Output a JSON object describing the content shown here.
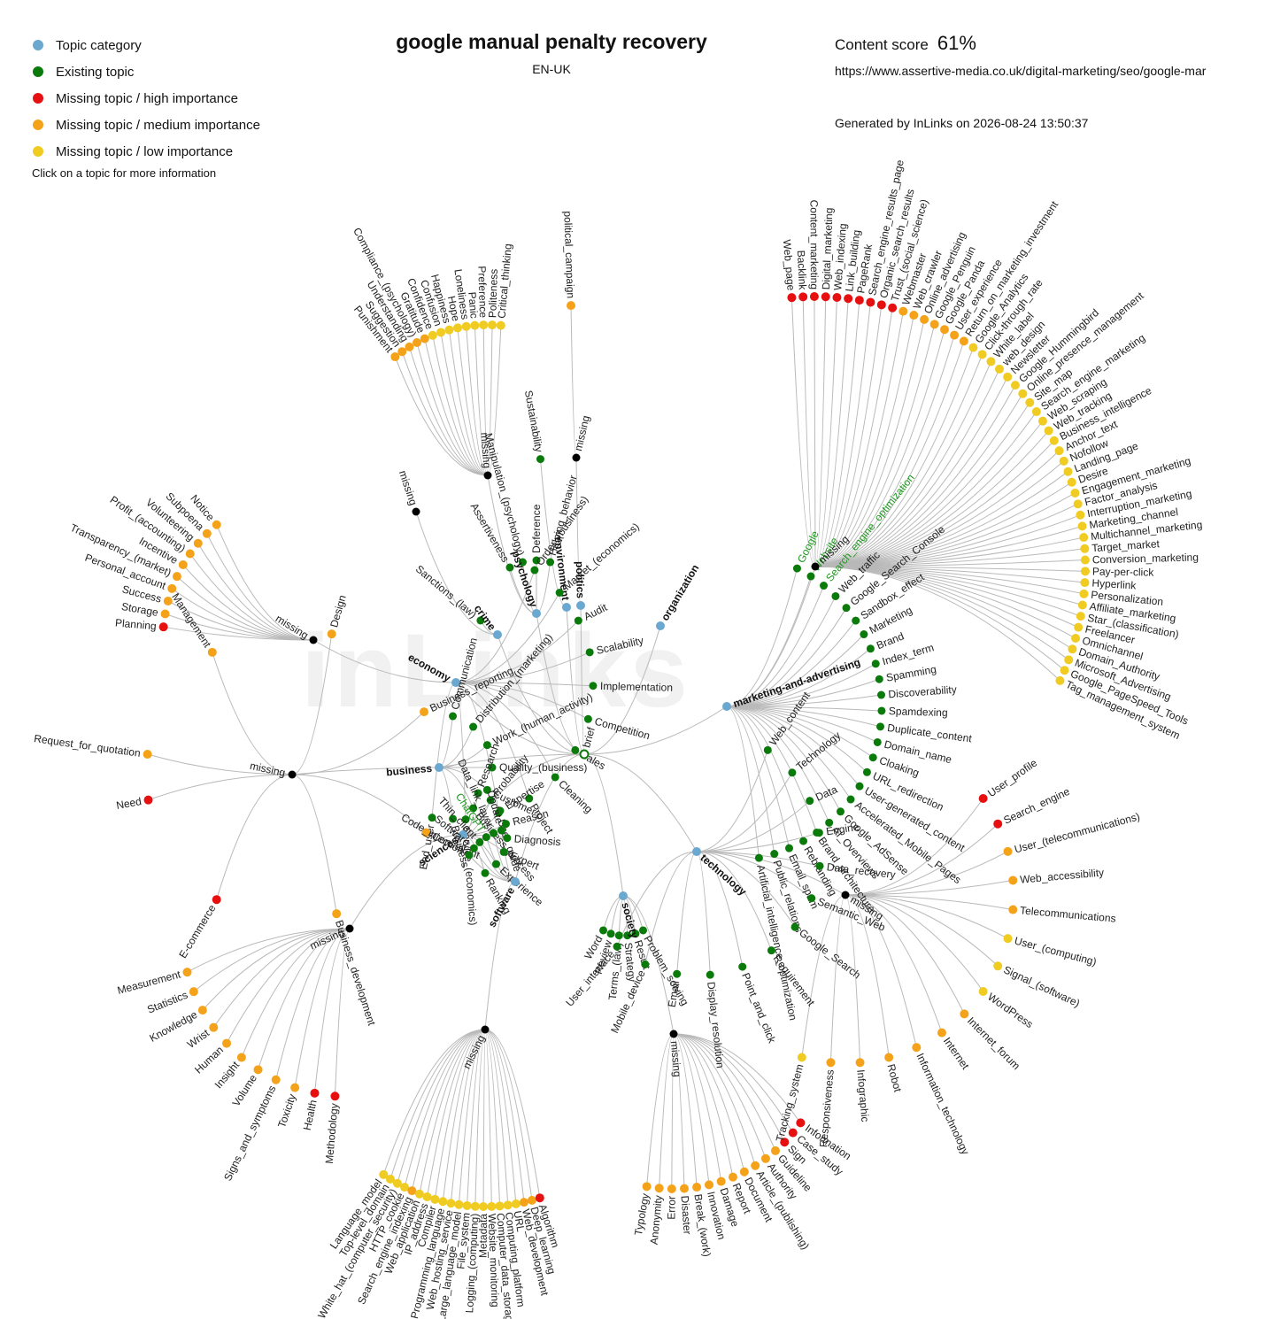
{
  "legend": {
    "items": [
      {
        "label": "Topic category",
        "color": "#6aa8d0"
      },
      {
        "label": "Existing topic",
        "color": "#0a7a0a"
      },
      {
        "label": "Missing topic / high importance",
        "color": "#e61010"
      },
      {
        "label": "Missing topic / medium importance",
        "color": "#f5a21b"
      },
      {
        "label": "Missing topic / low importance",
        "color": "#f0cb22"
      }
    ],
    "hint": "Click on a topic for more information"
  },
  "header": {
    "title": "google manual penalty recovery",
    "locale": "EN-UK",
    "score_label": "Content score",
    "score_value": "61%",
    "url": "https://www.assertive-media.co.uk/digital-marketing/seo/google-mar",
    "generated": "Generated by InLinks on 2026-08-24 13:50:37"
  },
  "watermark": "inLinks",
  "colors": {
    "category": "#6aa8d0",
    "existing": "#0a7a0a",
    "high": "#e61010",
    "medium": "#f5a21b",
    "low": "#f0cb22",
    "missing_node": "#000000"
  },
  "root": {
    "label": "brief"
  },
  "missing_label": "missing",
  "graph": {
    "categories": [
      {
        "name": "marketing-and-advertising",
        "existing": [
          "Google",
          "Website",
          "Search_engine_optimization",
          "Web_traffic",
          "Google_Search_Console",
          "Sandbox_effect",
          "Marketing",
          "Brand",
          "Index_term",
          "Spamming",
          "Discoverability",
          "Spamdexing",
          "Duplicate_content",
          "Domain_name",
          "Cloaking",
          "URL_redirection",
          "User-generated_content",
          "Accelerated_Mobile_Pages",
          "Google_AdSense",
          "AI_Overviews",
          "Brand_architecture",
          "Rebranding",
          "Email_spam",
          "Public_relations",
          "Artificial_intelligence_optimization"
        ],
        "missing": [
          [
            "Web_page",
            "high"
          ],
          [
            "Backlink",
            "high"
          ],
          [
            "Content_marketing",
            "high"
          ],
          [
            "Digital_marketing",
            "high"
          ],
          [
            "Web_indexing",
            "high"
          ],
          [
            "Link_building",
            "high"
          ],
          [
            "PageRank",
            "high"
          ],
          [
            "Search_engine_results_page",
            "high"
          ],
          [
            "Organic_search_results",
            "high"
          ],
          [
            "Trust_(social_science)",
            "high"
          ],
          [
            "Webmaster",
            "medium"
          ],
          [
            "Web_crawler",
            "medium"
          ],
          [
            "Online_advertising",
            "medium"
          ],
          [
            "Google_Penguin",
            "medium"
          ],
          [
            "Google_Panda",
            "medium"
          ],
          [
            "User_experience",
            "medium"
          ],
          [
            "Return_on_marketing_investment",
            "medium"
          ],
          [
            "Google_Analytics",
            "low"
          ],
          [
            "Click-through_rate",
            "low"
          ],
          [
            "White_label",
            "low"
          ],
          [
            "web_design",
            "low"
          ],
          [
            "Newsletter",
            "low"
          ],
          [
            "Google_Hummingbird",
            "low"
          ],
          [
            "Online_presence_management",
            "low"
          ],
          [
            "Site_map",
            "low"
          ],
          [
            "Search_engine_marketing",
            "low"
          ],
          [
            "Web_scraping",
            "low"
          ],
          [
            "Web_tracking",
            "low"
          ],
          [
            "Business_intelligence",
            "low"
          ],
          [
            "Anchor_text",
            "low"
          ],
          [
            "Nofollow",
            "low"
          ],
          [
            "Landing_page",
            "low"
          ],
          [
            "Desire",
            "low"
          ],
          [
            "Engagement_marketing",
            "low"
          ],
          [
            "Factor_analysis",
            "low"
          ],
          [
            "Interruption_marketing",
            "low"
          ],
          [
            "Marketing_channel",
            "low"
          ],
          [
            "Multichannel_marketing",
            "low"
          ],
          [
            "Target_market",
            "low"
          ],
          [
            "Conversion_marketing",
            "low"
          ],
          [
            "Pay-per-click",
            "low"
          ],
          [
            "Hyperlink",
            "low"
          ],
          [
            "Personalization",
            "low"
          ],
          [
            "Affiliate_marketing",
            "low"
          ],
          [
            "Star_(classification)",
            "low"
          ],
          [
            "Freelancer",
            "low"
          ],
          [
            "Omnichannel",
            "low"
          ],
          [
            "Domain_Authority",
            "low"
          ],
          [
            "Microsoft_Advertising",
            "low"
          ],
          [
            "Google_PageSpeed_Tools",
            "low"
          ],
          [
            "Tag_management_system",
            "low"
          ]
        ]
      },
      {
        "name": "organization",
        "existing": [],
        "missing": []
      },
      {
        "name": "politics",
        "existing": [],
        "missing": [
          [
            "political_campaign",
            "medium"
          ]
        ]
      },
      {
        "name": "environment",
        "existing": [
          "Sustainability"
        ],
        "missing": []
      },
      {
        "name": "psychology",
        "existing": [
          "Assertiveness",
          "Manipulation_(psychology)",
          "Deference",
          "Helping_behavior"
        ],
        "missing": [
          [
            "Punishment",
            "medium"
          ],
          [
            "Suggestion",
            "medium"
          ],
          [
            "Understanding",
            "medium"
          ],
          [
            "Compliance_(psychology)",
            "medium"
          ],
          [
            "Gratitude",
            "medium"
          ],
          [
            "Confidence",
            "low"
          ],
          [
            "Confusion",
            "low"
          ],
          [
            "Happiness",
            "low"
          ],
          [
            "Hope",
            "low"
          ],
          [
            "Loneliness",
            "low"
          ],
          [
            "Panic",
            "low"
          ],
          [
            "Preference",
            "low"
          ],
          [
            "Politeness",
            "low"
          ],
          [
            "Critical_thinking",
            "low"
          ]
        ]
      },
      {
        "name": "crime",
        "existing": [
          "Sanctions_(law)"
        ],
        "missing": []
      },
      {
        "name": "economy",
        "existing": [
          "Order_(business)",
          "Market_(economics)",
          "Audit",
          "Scalability",
          "Implementation",
          "Competition",
          "Sales",
          "Cleaning",
          "Project",
          "User_guide",
          "Service_(economics)",
          "End_user"
        ],
        "missing": [
          [
            "Notice",
            "medium"
          ],
          [
            "Subpoena",
            "medium"
          ],
          [
            "Volunteering",
            "medium"
          ],
          [
            "Profit_(accounting)",
            "medium"
          ],
          [
            "Incentive",
            "medium"
          ],
          [
            "Transparency_(market)",
            "medium"
          ],
          [
            "Personal_account",
            "medium"
          ],
          [
            "Success",
            "medium"
          ],
          [
            "Storage",
            "medium"
          ],
          [
            "Planning",
            "high"
          ]
        ]
      },
      {
        "name": "business",
        "existing": [
          "Communication",
          "Distribution_(marketing)",
          "Work_(human_activity)",
          "Quality_(business)",
          "Customer",
          "Business_process",
          "Business"
        ],
        "missing": [
          [
            "Request_for_quotation",
            "medium"
          ],
          [
            "Management",
            "medium"
          ],
          [
            "Design",
            "medium"
          ],
          [
            "Business_reporting",
            "medium"
          ],
          [
            "Consultant",
            "medium"
          ],
          [
            "Business_development",
            "medium"
          ],
          [
            "E-commerce",
            "high"
          ],
          [
            "Need",
            "high"
          ]
        ]
      },
      {
        "name": "sciences",
        "existing": [
          "Research",
          "Probability",
          "Expertise",
          "Reason",
          "Diagnosis",
          "Expert",
          "Experience",
          "Ranking"
        ],
        "missing": [
          [
            "Measurement",
            "medium"
          ],
          [
            "Statistics",
            "medium"
          ],
          [
            "Knowledge",
            "medium"
          ],
          [
            "Wrist",
            "medium"
          ],
          [
            "Human",
            "medium"
          ],
          [
            "Insight",
            "medium"
          ],
          [
            "Volume",
            "medium"
          ],
          [
            "Signs_and_symptoms",
            "medium"
          ],
          [
            "Toxicity",
            "medium"
          ],
          [
            "Health",
            "high"
          ],
          [
            "Methodology",
            "high"
          ]
        ]
      },
      {
        "name": "software",
        "existing": [
          "Code_injection",
          "Software",
          "Thin_client",
          "ChatGPT",
          "Data_link_layer",
          "Update"
        ],
        "missing": [
          [
            "Language_model",
            "low"
          ],
          [
            "Top-level_domain",
            "low"
          ],
          [
            "White_hat_(computer_security)",
            "low"
          ],
          [
            "HTTP_cookie",
            "low"
          ],
          [
            "Search_engine_indexing",
            "medium"
          ],
          [
            "Web_application",
            "low"
          ],
          [
            "IP_address",
            "low"
          ],
          [
            "Compiler",
            "low"
          ],
          [
            "Programming_language",
            "low"
          ],
          [
            "Web_hosting_service",
            "low"
          ],
          [
            "Large_language_model",
            "low"
          ],
          [
            "File_system",
            "low"
          ],
          [
            "Logging_(computing)",
            "low"
          ],
          [
            "Metadata",
            "low"
          ],
          [
            "Website_monitoring",
            "low"
          ],
          [
            "Computer_data_storage",
            "low"
          ],
          [
            "Computing_platform",
            "low"
          ],
          [
            "URL",
            "low"
          ],
          [
            "Web_development",
            "medium"
          ],
          [
            "Deep_learning",
            "medium"
          ],
          [
            "Algorithm",
            "high"
          ]
        ]
      },
      {
        "name": "society",
        "existing": [
          "Word",
          "Review",
          "Terms_(law)",
          "Strategy",
          "Result",
          "Problem_solving"
        ],
        "missing": [
          [
            "Typology",
            "medium"
          ],
          [
            "Anonymity",
            "medium"
          ],
          [
            "Error",
            "medium"
          ],
          [
            "Disaster",
            "medium"
          ],
          [
            "Break_(work)",
            "medium"
          ],
          [
            "Innovation",
            "medium"
          ],
          [
            "Damage",
            "medium"
          ],
          [
            "Report",
            "medium"
          ],
          [
            "Document",
            "medium"
          ],
          [
            "Article_(publishing)",
            "medium"
          ],
          [
            "Authority",
            "medium"
          ],
          [
            "Guideline",
            "medium"
          ],
          [
            "Sign",
            "high"
          ],
          [
            "Case_study",
            "high"
          ],
          [
            "Information",
            "high"
          ]
        ]
      },
      {
        "name": "technology",
        "existing": [
          "Web_content",
          "Technology",
          "Data",
          "Engine",
          "Data_recovery",
          "Semantic_Web",
          "Google_Search",
          "Requirement",
          "Point_and_click",
          "Display_resolution",
          "Email",
          "Mobile_device",
          "User_interface"
        ],
        "missing": [
          [
            "User_profile",
            "high"
          ],
          [
            "Search_engine",
            "high"
          ],
          [
            "User_(telecommunications)",
            "medium"
          ],
          [
            "Web_accessibility",
            "medium"
          ],
          [
            "Telecommunications",
            "medium"
          ],
          [
            "User_(computing)",
            "low"
          ],
          [
            "Signal_(software)",
            "low"
          ],
          [
            "WordPress",
            "low"
          ],
          [
            "Internet_forum",
            "medium"
          ],
          [
            "Internet",
            "medium"
          ],
          [
            "Information_technology",
            "medium"
          ],
          [
            "Robot",
            "medium"
          ],
          [
            "Infographic",
            "medium"
          ],
          [
            "Responsiveness",
            "medium"
          ],
          [
            "Tracking_system",
            "low"
          ]
        ]
      }
    ]
  }
}
